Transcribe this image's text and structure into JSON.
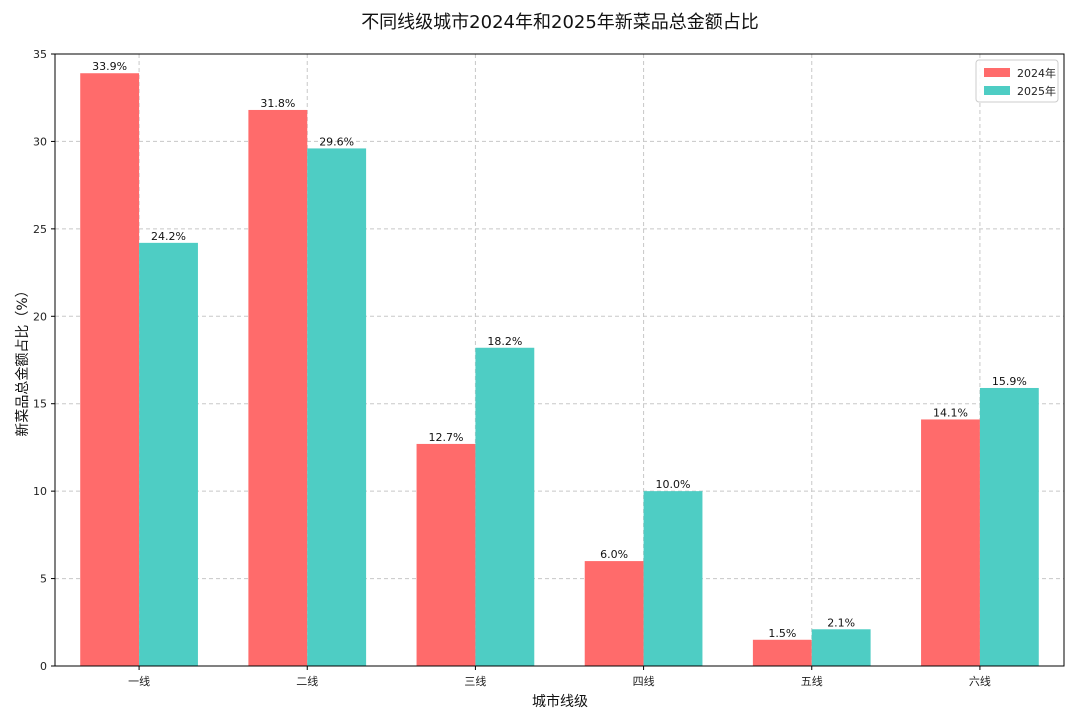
{
  "chart_data": {
    "type": "bar",
    "title": "不同线级城市2024年和2025年新菜品总金额占比",
    "xlabel": "城市线级",
    "ylabel": "新菜品总金额占比（%）",
    "categories": [
      "一线",
      "二线",
      "三线",
      "四线",
      "五线",
      "六线"
    ],
    "series": [
      {
        "name": "2024年",
        "color": "#ff6b6b",
        "values": [
          33.9,
          31.8,
          12.7,
          6.0,
          1.5,
          14.1
        ]
      },
      {
        "name": "2025年",
        "color": "#4ecdc4",
        "values": [
          24.2,
          29.6,
          18.2,
          10.0,
          2.1,
          15.9
        ]
      }
    ],
    "value_labels": [
      [
        "33.9%",
        "31.8%",
        "12.7%",
        "6.0%",
        "1.5%",
        "14.1%"
      ],
      [
        "24.2%",
        "29.6%",
        "18.2%",
        "10.0%",
        "2.1%",
        "15.9%"
      ]
    ],
    "ylim": [
      0,
      35
    ],
    "yticks": [
      0,
      5,
      10,
      15,
      20,
      25,
      30,
      35
    ],
    "grid": true,
    "legend": "top-right"
  }
}
